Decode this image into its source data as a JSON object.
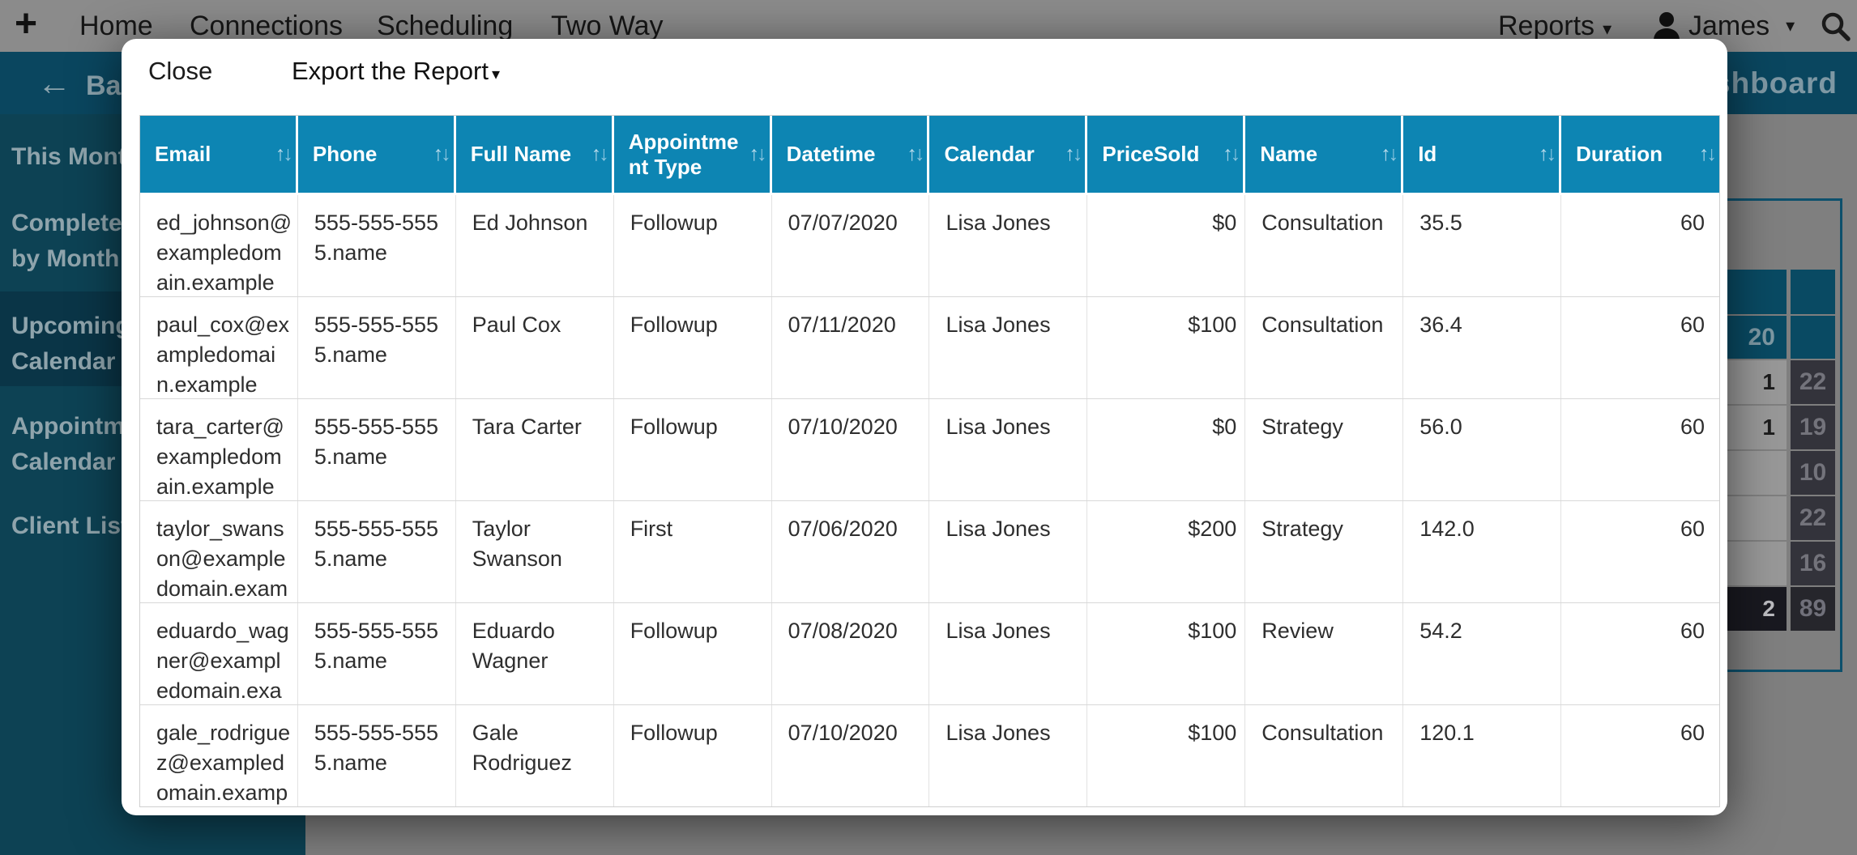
{
  "colors": {
    "table_header_blue": "#0d85b3",
    "sidebar_teal": "#0d4254",
    "sidebar_selected": "#0a3547",
    "page_header_teal": "#0a465f",
    "dashboard_box_border": "#0d506c",
    "dark_cell": "#33333b",
    "dimmed_page_gray": "#7f7f7f",
    "dimmed_nav_gray": "#8b8b8b",
    "sort_icon_blue": "#9bcfe4"
  },
  "navbar": {
    "plus_icon": "+",
    "links": [
      "Home",
      "Connections",
      "Scheduling",
      "Two Way"
    ],
    "reports_label": "Reports",
    "reports_caret": "▾",
    "user_name": "James",
    "user_caret": "▾"
  },
  "page_header": {
    "back_arrow": "←",
    "back_label": "Back",
    "title": "Dashboard"
  },
  "sidebar": {
    "items": [
      {
        "lines": [
          "This Month"
        ],
        "selected": false
      },
      {
        "lines": [
          "Completed",
          "by Month"
        ],
        "selected": false
      },
      {
        "lines": [
          "Upcoming A",
          "Calendar an"
        ],
        "selected": true
      },
      {
        "lines": [
          "Appointmen",
          "Calendar an"
        ],
        "selected": false
      },
      {
        "lines": [
          "Client List"
        ],
        "selected": false
      }
    ]
  },
  "modal": {
    "close_label": "Close",
    "export_label": "Export the Report",
    "export_caret": "▾",
    "sort_up": "↑",
    "sort_down": "↓",
    "table": {
      "columns": [
        "Email",
        "Phone",
        "Full Name",
        "Appointment Type",
        "Datetime",
        "Calendar",
        "PriceSold",
        "Name",
        "Id",
        "Duration"
      ],
      "rows": [
        [
          "ed_johnson@exampledomain.example",
          "555-555-5555.name",
          "Ed Johnson",
          "Followup",
          "07/07/2020",
          "Lisa Jones",
          "$0",
          "Consultation",
          "35.5",
          "60"
        ],
        [
          "paul_cox@exampledomain.example",
          "555-555-5555.name",
          "Paul Cox",
          "Followup",
          "07/11/2020",
          "Lisa Jones",
          "$100",
          "Consultation",
          "36.4",
          "60"
        ],
        [
          "tara_carter@exampledomain.example",
          "555-555-5555.name",
          "Tara Carter",
          "Followup",
          "07/10/2020",
          "Lisa Jones",
          "$0",
          "Strategy",
          "56.0",
          "60"
        ],
        [
          "taylor_swanson@exampledomain.example",
          "555-555-5555.name",
          "Taylor Swanson",
          "First",
          "07/06/2020",
          "Lisa Jones",
          "$200",
          "Strategy",
          "142.0",
          "60"
        ],
        [
          "eduardo_wagner@exampledomain.example",
          "555-555-5555.name",
          "Eduardo Wagner",
          "Followup",
          "07/08/2020",
          "Lisa Jones",
          "$100",
          "Review",
          "54.2",
          "60"
        ],
        [
          "gale_rodriguez@exampledomain.example",
          "555-555-5555.name",
          "Gale Rodriguez",
          "Followup",
          "07/10/2020",
          "Lisa Jones",
          "$100",
          "Consultation",
          "120.1",
          "60"
        ]
      ]
    }
  },
  "background_table": {
    "rows": [
      {
        "style": "teal-header",
        "left": "",
        "right": ""
      },
      {
        "style": "teal",
        "left": "20",
        "right": ""
      },
      {
        "style": "data",
        "left": "1",
        "right": "22"
      },
      {
        "style": "data",
        "left": "1",
        "right": "19"
      },
      {
        "style": "data",
        "left": "",
        "right": "10"
      },
      {
        "style": "data",
        "left": "",
        "right": "22"
      },
      {
        "style": "data",
        "left": "",
        "right": "16"
      },
      {
        "style": "total",
        "left": "2",
        "right": "89"
      }
    ]
  }
}
